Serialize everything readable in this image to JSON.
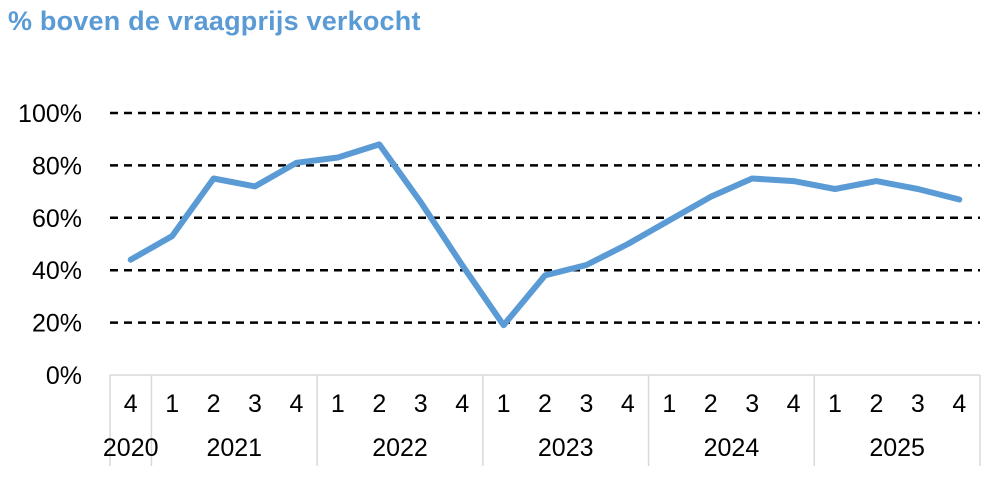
{
  "chart_data": {
    "type": "line",
    "title": "% boven de vraagprijs verkocht",
    "xlabel": "",
    "ylabel": "",
    "y_tick_labels": [
      "0%",
      "20%",
      "40%",
      "60%",
      "80%",
      "100%"
    ],
    "y_ticks": [
      0,
      20,
      40,
      60,
      80,
      100
    ],
    "ylim": [
      0,
      100
    ],
    "grid": "horizontal dashed",
    "legend": "none",
    "line_color": "#5B9BD5",
    "categories": [
      {
        "quarter": "4",
        "year": "2020"
      },
      {
        "quarter": "1",
        "year": "2021"
      },
      {
        "quarter": "2",
        "year": "2021"
      },
      {
        "quarter": "3",
        "year": "2021"
      },
      {
        "quarter": "4",
        "year": "2021"
      },
      {
        "quarter": "1",
        "year": "2022"
      },
      {
        "quarter": "2",
        "year": "2022"
      },
      {
        "quarter": "3",
        "year": "2022"
      },
      {
        "quarter": "4",
        "year": "2022"
      },
      {
        "quarter": "1",
        "year": "2023"
      },
      {
        "quarter": "2",
        "year": "2023"
      },
      {
        "quarter": "3",
        "year": "2023"
      },
      {
        "quarter": "4",
        "year": "2023"
      },
      {
        "quarter": "1",
        "year": "2024"
      },
      {
        "quarter": "2",
        "year": "2024"
      },
      {
        "quarter": "3",
        "year": "2024"
      },
      {
        "quarter": "4",
        "year": "2024"
      },
      {
        "quarter": "1",
        "year": "2025"
      },
      {
        "quarter": "2",
        "year": "2025"
      },
      {
        "quarter": "3",
        "year": "2025"
      },
      {
        "quarter": "4",
        "year": "2025"
      }
    ],
    "year_groups": [
      {
        "label": "2020",
        "count": 1
      },
      {
        "label": "2021",
        "count": 4
      },
      {
        "label": "2022",
        "count": 4
      },
      {
        "label": "2023",
        "count": 4
      },
      {
        "label": "2024",
        "count": 4
      },
      {
        "label": "2025",
        "count": 4
      }
    ],
    "series": [
      {
        "values": [
          44,
          53,
          75,
          72,
          81,
          83,
          88,
          66,
          42,
          19,
          38,
          42,
          50,
          59,
          68,
          75,
          74,
          71,
          74,
          71,
          67
        ]
      }
    ]
  }
}
